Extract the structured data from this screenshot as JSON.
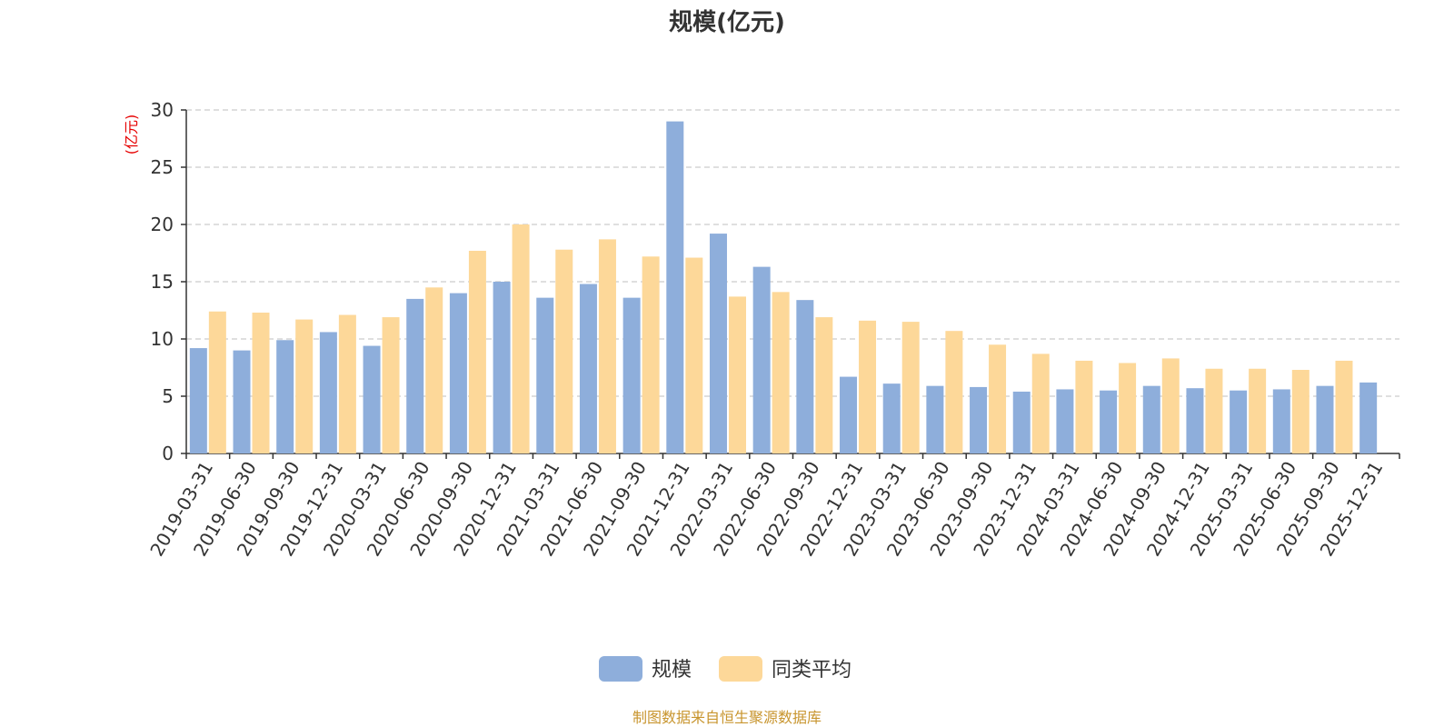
{
  "chart_data": {
    "type": "bar",
    "title": "规模(亿元)",
    "ylabel": "(亿元)",
    "xlabel": "",
    "ylim": [
      0,
      30
    ],
    "yticks": [
      0,
      5,
      10,
      15,
      20,
      25,
      30
    ],
    "grid": true,
    "legend_position": "bottom-center",
    "categories": [
      "2019-03-31",
      "2019-06-30",
      "2019-09-30",
      "2019-12-31",
      "2020-03-31",
      "2020-06-30",
      "2020-09-30",
      "2020-12-31",
      "2021-03-31",
      "2021-06-30",
      "2021-09-30",
      "2021-12-31",
      "2022-03-31",
      "2022-06-30",
      "2022-09-30",
      "2022-12-31",
      "2023-03-31",
      "2023-06-30",
      "2023-09-30",
      "2023-12-31",
      "2024-03-31",
      "2024-06-30",
      "2024-09-30",
      "2024-12-31",
      "2025-03-31",
      "2025-06-30",
      "2025-09-30",
      "2025-12-31"
    ],
    "series": [
      {
        "name": "规模",
        "color": "#8eaedb",
        "values": [
          9.2,
          9.0,
          9.9,
          10.6,
          9.4,
          13.5,
          14.0,
          15.0,
          13.6,
          14.8,
          13.6,
          29.0,
          19.2,
          16.3,
          13.4,
          6.7,
          6.1,
          5.9,
          5.8,
          5.4,
          5.6,
          5.5,
          5.9,
          5.7,
          5.5,
          5.6,
          5.9,
          6.2
        ]
      },
      {
        "name": "同类平均",
        "color": "#fdd899",
        "values": [
          12.4,
          12.3,
          11.7,
          12.1,
          11.9,
          14.5,
          17.7,
          20.0,
          17.8,
          18.7,
          17.2,
          17.1,
          13.7,
          14.1,
          11.9,
          11.6,
          11.5,
          10.7,
          9.5,
          8.7,
          8.1,
          7.9,
          8.3,
          7.4,
          7.4,
          7.3,
          8.1,
          null
        ]
      }
    ],
    "unit_color": "#e60000",
    "source_text": "制图数据来自恒生聚源数据库",
    "source_color": "#c8952e"
  }
}
